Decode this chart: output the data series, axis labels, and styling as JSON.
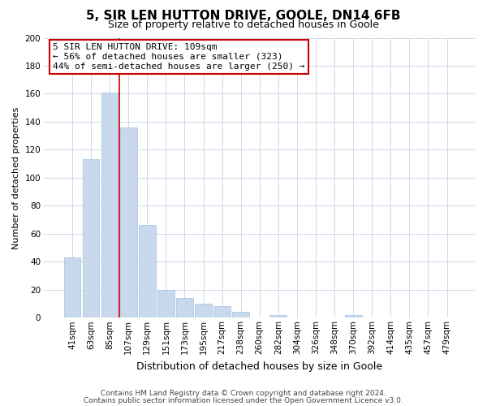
{
  "title": "5, SIR LEN HUTTON DRIVE, GOOLE, DN14 6FB",
  "subtitle": "Size of property relative to detached houses in Goole",
  "xlabel": "Distribution of detached houses by size in Goole",
  "ylabel": "Number of detached properties",
  "categories": [
    "41sqm",
    "63sqm",
    "85sqm",
    "107sqm",
    "129sqm",
    "151sqm",
    "173sqm",
    "195sqm",
    "217sqm",
    "238sqm",
    "260sqm",
    "282sqm",
    "304sqm",
    "326sqm",
    "348sqm",
    "370sqm",
    "392sqm",
    "414sqm",
    "435sqm",
    "457sqm",
    "479sqm"
  ],
  "values": [
    43,
    113,
    161,
    136,
    66,
    20,
    14,
    10,
    8,
    4,
    0,
    2,
    0,
    0,
    0,
    2,
    0,
    0,
    0,
    0,
    0
  ],
  "bar_color": "#c8d9ed",
  "bar_edge_color": "#aec6e0",
  "vline_color": "#cc0000",
  "vline_x_index": 2.5,
  "ylim": [
    0,
    200
  ],
  "yticks": [
    0,
    20,
    40,
    60,
    80,
    100,
    120,
    140,
    160,
    180,
    200
  ],
  "annotation_lines": [
    "5 SIR LEN HUTTON DRIVE: 109sqm",
    "← 56% of detached houses are smaller (323)",
    "44% of semi-detached houses are larger (250) →"
  ],
  "footnote1": "Contains HM Land Registry data © Crown copyright and database right 2024.",
  "footnote2": "Contains public sector information licensed under the Open Government Licence v3.0.",
  "background_color": "#ffffff",
  "grid_color": "#cdd8e8",
  "title_fontsize": 11,
  "subtitle_fontsize": 9,
  "xlabel_fontsize": 9,
  "ylabel_fontsize": 8,
  "tick_fontsize": 7.5,
  "annot_fontsize": 8,
  "footnote_fontsize": 6.5
}
